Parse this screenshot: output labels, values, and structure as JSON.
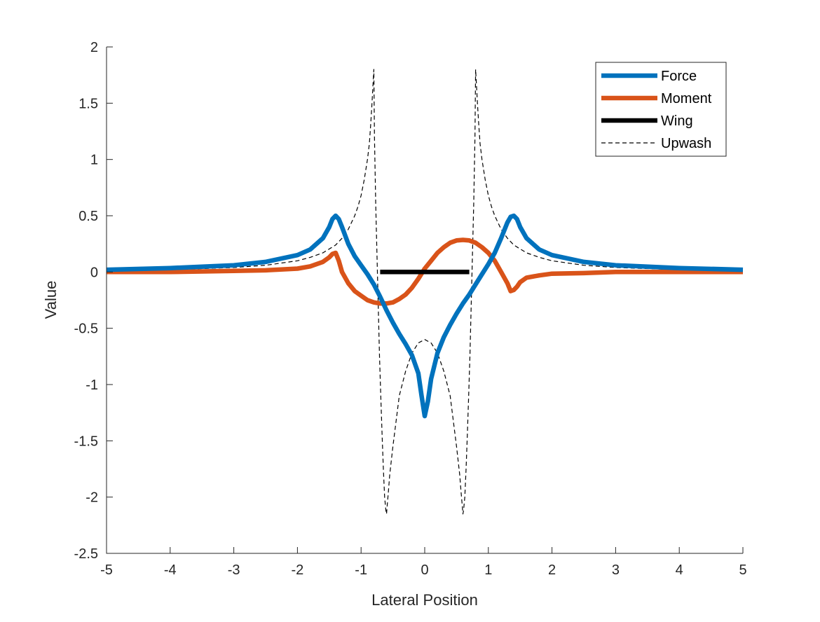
{
  "chart_data": {
    "type": "line",
    "title": "",
    "xlabel": "Lateral Position",
    "ylabel": "Value",
    "xlim": [
      -5,
      5
    ],
    "ylim": [
      -2.5,
      2
    ],
    "xticks": [
      -5,
      -4,
      -3,
      -2,
      -1,
      0,
      1,
      2,
      3,
      4,
      5
    ],
    "yticks": [
      -2.5,
      -2,
      -1.5,
      -1,
      -0.5,
      0,
      0.5,
      1,
      1.5,
      2
    ],
    "xtick_labels": [
      "-5",
      "-4",
      "-3",
      "-2",
      "-1",
      "0",
      "1",
      "2",
      "3",
      "4",
      "5"
    ],
    "ytick_labels": [
      "-2.5",
      "-2",
      "-1.5",
      "-1",
      "-0.5",
      "0",
      "0.5",
      "1",
      "1.5",
      "2"
    ],
    "grid": false,
    "legend_position": "top-right",
    "series": [
      {
        "name": "Force",
        "color": "#0072BD",
        "style": "solid-thick",
        "x": [
          -5,
          -4,
          -3,
          -2.5,
          -2,
          -1.8,
          -1.6,
          -1.5,
          -1.45,
          -1.4,
          -1.35,
          -1.3,
          -1.2,
          -1.1,
          -1.0,
          -0.9,
          -0.8,
          -0.7,
          -0.6,
          -0.5,
          -0.4,
          -0.3,
          -0.2,
          -0.1,
          -0.05,
          0,
          0.05,
          0.1,
          0.2,
          0.3,
          0.4,
          0.5,
          0.6,
          0.7,
          0.8,
          0.9,
          1.0,
          1.1,
          1.2,
          1.3,
          1.35,
          1.4,
          1.45,
          1.5,
          1.6,
          1.8,
          2,
          2.5,
          3,
          4,
          5
        ],
        "y": [
          0.02,
          0.035,
          0.06,
          0.09,
          0.15,
          0.2,
          0.3,
          0.4,
          0.47,
          0.5,
          0.47,
          0.4,
          0.25,
          0.14,
          0.06,
          -0.02,
          -0.11,
          -0.22,
          -0.34,
          -0.45,
          -0.55,
          -0.64,
          -0.74,
          -0.9,
          -1.1,
          -1.28,
          -1.15,
          -0.95,
          -0.72,
          -0.58,
          -0.47,
          -0.37,
          -0.28,
          -0.2,
          -0.11,
          -0.02,
          0.07,
          0.17,
          0.3,
          0.44,
          0.49,
          0.5,
          0.47,
          0.4,
          0.3,
          0.2,
          0.15,
          0.09,
          0.06,
          0.035,
          0.02
        ]
      },
      {
        "name": "Moment",
        "color": "#D95319",
        "style": "solid-thick",
        "x": [
          -5,
          -4,
          -3,
          -2.5,
          -2,
          -1.8,
          -1.6,
          -1.5,
          -1.45,
          -1.4,
          -1.35,
          -1.3,
          -1.2,
          -1.1,
          -1.0,
          -0.9,
          -0.8,
          -0.7,
          -0.6,
          -0.5,
          -0.4,
          -0.3,
          -0.2,
          -0.1,
          0,
          0.1,
          0.2,
          0.3,
          0.4,
          0.5,
          0.6,
          0.7,
          0.8,
          0.9,
          1.0,
          1.1,
          1.2,
          1.3,
          1.35,
          1.4,
          1.45,
          1.5,
          1.6,
          1.8,
          2,
          2.5,
          3,
          4,
          5
        ],
        "y": [
          0.0,
          0.0,
          0.01,
          0.015,
          0.03,
          0.05,
          0.09,
          0.13,
          0.16,
          0.17,
          0.1,
          0.0,
          -0.1,
          -0.17,
          -0.21,
          -0.25,
          -0.27,
          -0.28,
          -0.28,
          -0.27,
          -0.24,
          -0.2,
          -0.14,
          -0.06,
          0.03,
          0.1,
          0.17,
          0.22,
          0.26,
          0.28,
          0.285,
          0.28,
          0.26,
          0.22,
          0.17,
          0.1,
          0.0,
          -0.1,
          -0.17,
          -0.16,
          -0.13,
          -0.09,
          -0.05,
          -0.03,
          -0.015,
          -0.01,
          0.0,
          0.0,
          0.0
        ]
      },
      {
        "name": "Wing",
        "color": "#000000",
        "style": "solid-thick",
        "x": [
          -0.7,
          0.7
        ],
        "y": [
          0,
          0
        ]
      },
      {
        "name": "Upwash",
        "color": "#000000",
        "style": "dashed-thin",
        "x": [
          -5,
          -4,
          -3,
          -2.5,
          -2,
          -1.8,
          -1.6,
          -1.4,
          -1.3,
          -1.2,
          -1.1,
          -1.05,
          -1.0,
          -0.95,
          -0.9,
          -0.87,
          -0.85,
          -0.83,
          -0.81,
          -0.8,
          -0.8,
          -0.79,
          -0.77,
          -0.75,
          -0.73,
          -0.71,
          -0.69,
          -0.67,
          -0.65,
          -0.63,
          -0.61,
          -0.6,
          -0.6,
          -0.59,
          -0.57,
          -0.55,
          -0.5,
          -0.4,
          -0.3,
          -0.2,
          -0.1,
          0,
          0.1,
          0.2,
          0.3,
          0.4,
          0.5,
          0.55,
          0.57,
          0.59,
          0.6,
          0.6,
          0.61,
          0.63,
          0.65,
          0.67,
          0.69,
          0.71,
          0.73,
          0.75,
          0.77,
          0.79,
          0.8,
          0.8,
          0.81,
          0.83,
          0.85,
          0.87,
          0.9,
          0.95,
          1.0,
          1.05,
          1.1,
          1.2,
          1.3,
          1.4,
          1.6,
          1.8,
          2,
          2.5,
          3,
          4,
          5
        ],
        "y": [
          0.01,
          0.02,
          0.04,
          0.06,
          0.1,
          0.13,
          0.17,
          0.24,
          0.3,
          0.38,
          0.5,
          0.58,
          0.68,
          0.82,
          1.0,
          1.14,
          1.3,
          1.48,
          1.7,
          1.8,
          1.8,
          1.2,
          0.6,
          0.15,
          -0.3,
          -0.75,
          -1.1,
          -1.45,
          -1.75,
          -2.0,
          -2.12,
          -2.15,
          -2.15,
          -2.08,
          -1.95,
          -1.8,
          -1.55,
          -1.1,
          -0.88,
          -0.72,
          -0.63,
          -0.6,
          -0.63,
          -0.72,
          -0.88,
          -1.1,
          -1.55,
          -1.8,
          -1.95,
          -2.08,
          -2.15,
          -2.15,
          -2.12,
          -2.0,
          -1.75,
          -1.45,
          -1.1,
          -0.75,
          -0.3,
          0.15,
          0.6,
          1.2,
          1.8,
          1.8,
          1.7,
          1.48,
          1.3,
          1.14,
          1.0,
          0.82,
          0.68,
          0.58,
          0.5,
          0.38,
          0.3,
          0.24,
          0.17,
          0.13,
          0.1,
          0.06,
          0.04,
          0.02,
          0.01
        ]
      }
    ]
  }
}
